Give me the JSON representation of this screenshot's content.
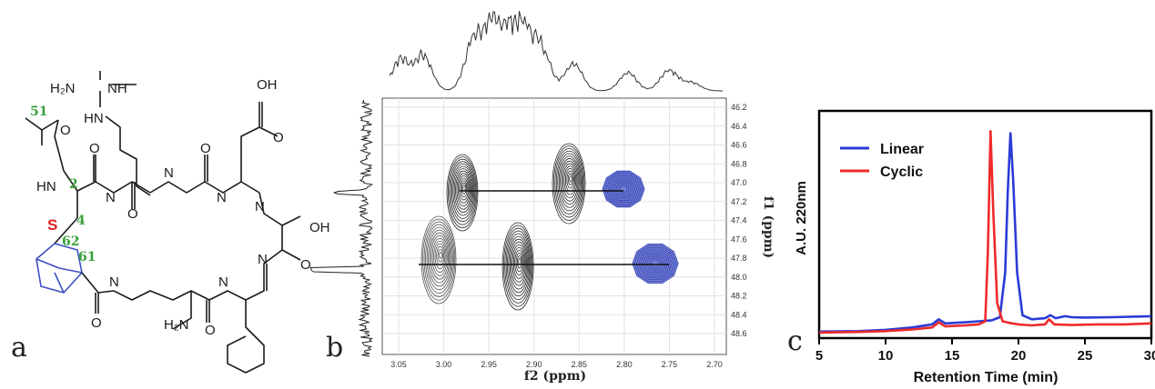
{
  "panel_a": {
    "letter": "a",
    "groups": {
      "amine": "H₂N",
      "imine": "NH",
      "guanidine_nh": "HN",
      "acid_oh": "OH",
      "serine_oh": "OH",
      "amide_nh2": "H₂N",
      "sulfur": "S"
    },
    "amide_h": [
      "HN",
      "H",
      "H",
      "H",
      "H",
      "H",
      "H",
      "H",
      "H",
      "H"
    ],
    "amide_n": [
      "N",
      "N",
      "N",
      "N",
      "N",
      "N",
      "N",
      "N",
      "N",
      "N"
    ],
    "oxygens": [
      "O",
      "O",
      "O",
      "O",
      "O",
      "O",
      "O",
      "O",
      "O",
      "O"
    ],
    "atom_numbers": [
      "51",
      "2",
      "4",
      "62",
      "61"
    ]
  },
  "panel_b": {
    "letter": "b",
    "xlabel": "f2 (ppm)",
    "ylabel": "f1 (ppm)",
    "xticks": [
      "3.05",
      "3.00",
      "2.95",
      "2.90",
      "2.85",
      "2.80",
      "2.75",
      "2.70"
    ],
    "yticks": [
      "46.2",
      "46.4",
      "46.6",
      "46.8",
      "47.0",
      "47.2",
      "47.4",
      "47.6",
      "47.8",
      "48.0",
      "48.2",
      "48.4",
      "48.6"
    ]
  },
  "chart_data": {
    "type": "line",
    "letter": "c",
    "title": "",
    "xlabel": "Retention Time (min)",
    "ylabel": "A.U. 220nm",
    "xlim": [
      5,
      30
    ],
    "xticks": [
      "5",
      "10",
      "15",
      "20",
      "25",
      "30"
    ],
    "legend_position": "top-left",
    "series": [
      {
        "name": "Linear",
        "color": "#2b3bd6",
        "points": [
          [
            5,
            0.01
          ],
          [
            8,
            0.012
          ],
          [
            10,
            0.018
          ],
          [
            12,
            0.03
          ],
          [
            13.5,
            0.045
          ],
          [
            14,
            0.07
          ],
          [
            14.5,
            0.05
          ],
          [
            16,
            0.055
          ],
          [
            17,
            0.06
          ],
          [
            18,
            0.065
          ],
          [
            18.6,
            0.08
          ],
          [
            19,
            0.3
          ],
          [
            19.2,
            0.7
          ],
          [
            19.4,
            0.98
          ],
          [
            19.6,
            0.75
          ],
          [
            19.9,
            0.3
          ],
          [
            20.3,
            0.09
          ],
          [
            21,
            0.07
          ],
          [
            22,
            0.075
          ],
          [
            22.4,
            0.09
          ],
          [
            22.8,
            0.075
          ],
          [
            23.5,
            0.085
          ],
          [
            24,
            0.08
          ],
          [
            25,
            0.078
          ],
          [
            27,
            0.08
          ],
          [
            30,
            0.085
          ]
        ]
      },
      {
        "name": "Cyclic",
        "color": "#ee2a2a",
        "points": [
          [
            5,
            0.005
          ],
          [
            8,
            0.008
          ],
          [
            10,
            0.012
          ],
          [
            12,
            0.02
          ],
          [
            13.5,
            0.03
          ],
          [
            14,
            0.055
          ],
          [
            14.5,
            0.035
          ],
          [
            16,
            0.04
          ],
          [
            17,
            0.045
          ],
          [
            17.5,
            0.06
          ],
          [
            17.7,
            0.4
          ],
          [
            17.9,
            0.99
          ],
          [
            18.1,
            0.6
          ],
          [
            18.4,
            0.15
          ],
          [
            18.8,
            0.06
          ],
          [
            19.5,
            0.05
          ],
          [
            20,
            0.045
          ],
          [
            21,
            0.04
          ],
          [
            22,
            0.045
          ],
          [
            22.3,
            0.07
          ],
          [
            22.7,
            0.045
          ],
          [
            24,
            0.042
          ],
          [
            26,
            0.045
          ],
          [
            28,
            0.045
          ],
          [
            30,
            0.05
          ]
        ]
      }
    ]
  }
}
